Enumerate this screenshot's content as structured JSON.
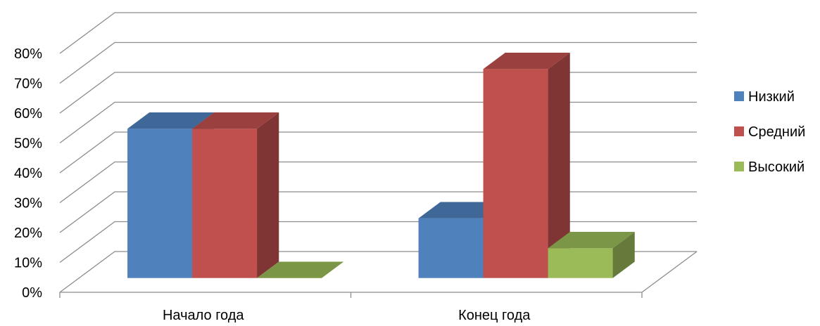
{
  "chart_data": {
    "type": "bar",
    "categories": [
      "Начало года",
      "Конец года"
    ],
    "series": [
      {
        "name": "Низкий",
        "values": [
          50,
          20
        ],
        "color": "#4f81bd"
      },
      {
        "name": "Средний",
        "values": [
          50,
          70
        ],
        "color": "#c0504d"
      },
      {
        "name": "Высокий",
        "values": [
          0,
          10
        ],
        "color": "#9bbb59"
      }
    ],
    "ylim": [
      0,
      80
    ],
    "yticks": [
      "0%",
      "10%",
      "20%",
      "30%",
      "40%",
      "50%",
      "60%",
      "70%",
      "80%"
    ],
    "grid": true,
    "legend": "right",
    "style": "3d-clustered-column"
  }
}
